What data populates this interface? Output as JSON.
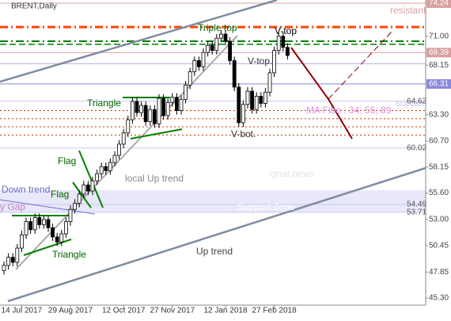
{
  "chart_data": {
    "type": "candlestick",
    "title": "BRENT,Daily",
    "categories": [
      null,
      null,
      null,
      null,
      "14 Jul 2017",
      null,
      null,
      null,
      null,
      null,
      null,
      null,
      null,
      null,
      null,
      "29 Aug 2017",
      null,
      null,
      null,
      null,
      null,
      null,
      null,
      null,
      null,
      null,
      null,
      "12 Oct 2017",
      null,
      null,
      null,
      null,
      null,
      null,
      null,
      null,
      null,
      null,
      "27 Nov 2017",
      null,
      null,
      null,
      null,
      null,
      null,
      null,
      null,
      null,
      null,
      null,
      "12 Jan 2018",
      null,
      null,
      null,
      null,
      null,
      null,
      null,
      null,
      null,
      null,
      "27 Feb 2018",
      null,
      null,
      null
    ],
    "open": [
      48.0,
      48.5,
      49.3,
      48.8,
      50.2,
      51.5,
      52.8,
      52.0,
      53.2,
      52.5,
      53.0,
      52.2,
      51.3,
      50.8,
      51.6,
      52.8,
      54.0,
      54.6,
      55.5,
      56.4,
      55.8,
      56.8,
      57.5,
      58.2,
      57.8,
      58.6,
      59.3,
      60.4,
      61.5,
      62.8,
      64.6,
      63.5,
      64.2,
      62.6,
      63.8,
      62.4,
      64.9,
      63.2,
      64.5,
      65.0,
      63.7,
      64.8,
      66.2,
      67.5,
      68.6,
      68.0,
      69.4,
      70.1,
      69.6,
      70.8,
      71.2,
      70.5,
      68.6,
      66.0,
      62.5,
      64.3,
      65.6,
      63.8,
      65.1,
      64.4,
      65.5,
      67.4,
      69.6,
      71.0,
      69.9
    ],
    "high": [
      48.9,
      49.7,
      49.7,
      50.6,
      51.9,
      53.2,
      53.2,
      53.6,
      53.6,
      53.4,
      53.4,
      52.6,
      51.7,
      52.0,
      53.2,
      54.4,
      55.0,
      55.9,
      56.8,
      56.8,
      57.2,
      57.9,
      58.6,
      58.6,
      59.0,
      59.7,
      60.8,
      61.9,
      63.2,
      65.0,
      65.0,
      64.6,
      64.6,
      64.2,
      64.2,
      65.3,
      65.3,
      64.9,
      65.4,
      65.4,
      65.2,
      66.6,
      67.9,
      69.0,
      69.0,
      69.8,
      70.5,
      70.5,
      71.2,
      71.6,
      71.6,
      70.9,
      69.0,
      66.4,
      64.7,
      66.0,
      66.0,
      65.5,
      65.5,
      65.9,
      67.8,
      70.0,
      71.4,
      71.4,
      70.3
    ],
    "low": [
      47.6,
      48.1,
      48.4,
      48.4,
      49.8,
      51.1,
      51.6,
      51.6,
      52.1,
      52.1,
      51.8,
      50.9,
      50.4,
      50.4,
      51.2,
      52.4,
      53.6,
      54.2,
      55.1,
      55.4,
      55.4,
      56.4,
      57.1,
      57.4,
      57.4,
      58.2,
      58.9,
      60.0,
      61.1,
      62.4,
      63.1,
      63.1,
      62.2,
      62.2,
      62.0,
      62.0,
      62.8,
      62.8,
      64.1,
      63.3,
      63.3,
      64.4,
      65.8,
      67.1,
      67.6,
      67.6,
      69.0,
      69.2,
      69.2,
      70.4,
      70.1,
      68.2,
      65.6,
      62.1,
      62.1,
      63.9,
      63.4,
      63.4,
      64.0,
      64.0,
      65.1,
      67.0,
      69.2,
      69.5,
      68.7
    ],
    "close": [
      48.5,
      49.3,
      48.8,
      50.2,
      51.5,
      52.8,
      52.0,
      53.2,
      52.5,
      53.0,
      52.2,
      51.3,
      50.8,
      51.6,
      52.8,
      54.0,
      54.6,
      55.5,
      56.4,
      55.8,
      56.8,
      57.5,
      58.2,
      57.8,
      58.6,
      59.3,
      60.4,
      61.5,
      62.8,
      64.6,
      63.5,
      64.2,
      62.6,
      63.8,
      62.4,
      64.9,
      63.2,
      64.5,
      65.0,
      63.7,
      64.8,
      66.2,
      67.5,
      68.6,
      68.0,
      69.4,
      70.1,
      69.6,
      70.8,
      71.2,
      70.5,
      68.6,
      66.0,
      62.5,
      64.3,
      65.6,
      63.8,
      65.1,
      64.4,
      65.5,
      67.4,
      69.6,
      71.0,
      69.9,
      69.1
    ],
    "color": "#000000",
    "ylim": [
      44.6,
      74.55
    ],
    "yticks": [
      {
        "value": 45.3,
        "label": "45.30"
      },
      47.85,
      50.45,
      {
        "value": 53,
        "label": "53.00"
      },
      {
        "value": 55.6,
        "label": "55.60"
      },
      58.15,
      {
        "value": 60.7,
        "label": "60.70"
      },
      {
        "value": 63.3,
        "label": "63.30"
      },
      68.15,
      {
        "value": 71,
        "label": "71.00"
      }
    ],
    "levels": [
      {
        "value": 74.24,
        "color": "#d9a0a0",
        "style": "solid",
        "width": 1,
        "boxed": true
      },
      {
        "value": 71.9,
        "color": "#ff4500",
        "style": "dashdot",
        "width": 3
      },
      {
        "value": 70.5,
        "color": "#008000",
        "style": "dashdot",
        "width": 2
      },
      {
        "value": 70.2,
        "color": "#008000",
        "style": "dash",
        "width": 1.5
      },
      {
        "value": 69.39,
        "color": "#d9a0a0",
        "style": "solid",
        "width": 1,
        "boxed": true
      },
      {
        "value": 68.3,
        "color": "#b0b0e8",
        "style": "solid",
        "width": 1
      },
      {
        "value": 66.31,
        "color": "#8888dd",
        "style": "solid",
        "width": 1,
        "boxed": true
      },
      {
        "value": 64.62,
        "color": "#c8c8f0",
        "style": "solid",
        "width": 1,
        "labeled": true
      },
      {
        "value": 63.7,
        "color": "#cc3300",
        "style": "dot",
        "width": 1
      },
      {
        "value": 62.9,
        "color": "#cc3300",
        "style": "dot",
        "width": 1
      },
      {
        "value": 62.1,
        "color": "#cc3300",
        "style": "dot",
        "width": 1
      },
      {
        "value": 61.3,
        "color": "#cc3300",
        "style": "dot",
        "width": 1
      },
      {
        "value": 60.02,
        "color": "#c8c8f0",
        "style": "solid",
        "width": 1,
        "labeled": true
      },
      {
        "value": 54.49,
        "color": "#c8c8f0",
        "style": "solid",
        "width": 1,
        "labeled": true
      },
      {
        "value": 53.71,
        "color": "#c8c8f0",
        "style": "solid",
        "width": 1,
        "labeled": true
      }
    ],
    "annotations": [
      "Triple top",
      "V-top",
      "V-top.",
      "V-bot.",
      "Triangle",
      "Triangle",
      "Flag",
      "Flag",
      "local Up trend",
      "Up trend",
      "Down trend",
      "Support Zone",
      "support",
      "resistant",
      "MA Fibo : 34; 55; 89",
      "ignat.news",
      "y Gap"
    ]
  }
}
